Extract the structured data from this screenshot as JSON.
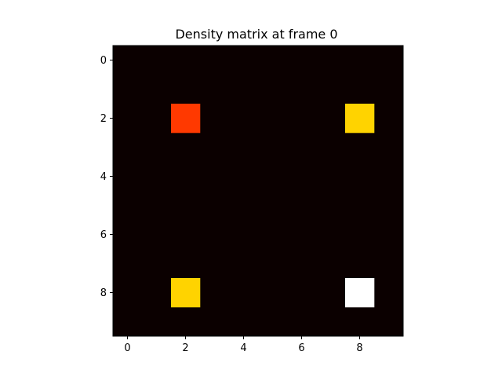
{
  "chart_data": {
    "type": "heatmap",
    "title": "Density matrix at frame 0",
    "xlabel": "",
    "ylabel": "",
    "rows": 10,
    "cols": 10,
    "xlim": [
      -0.5,
      9.5
    ],
    "ylim": [
      9.5,
      -0.5
    ],
    "x_ticks": [
      0,
      2,
      4,
      6,
      8
    ],
    "y_ticks": [
      0,
      2,
      4,
      6,
      8
    ],
    "colormap": "hot",
    "vmin": 0,
    "vmax": 1,
    "cells": [
      {
        "row": 2,
        "col": 2,
        "value": 0.45
      },
      {
        "row": 2,
        "col": 8,
        "value": 0.68
      },
      {
        "row": 8,
        "col": 2,
        "value": 0.68
      },
      {
        "row": 8,
        "col": 8,
        "value": 1.0
      }
    ],
    "background_value": 0,
    "grid": false
  }
}
